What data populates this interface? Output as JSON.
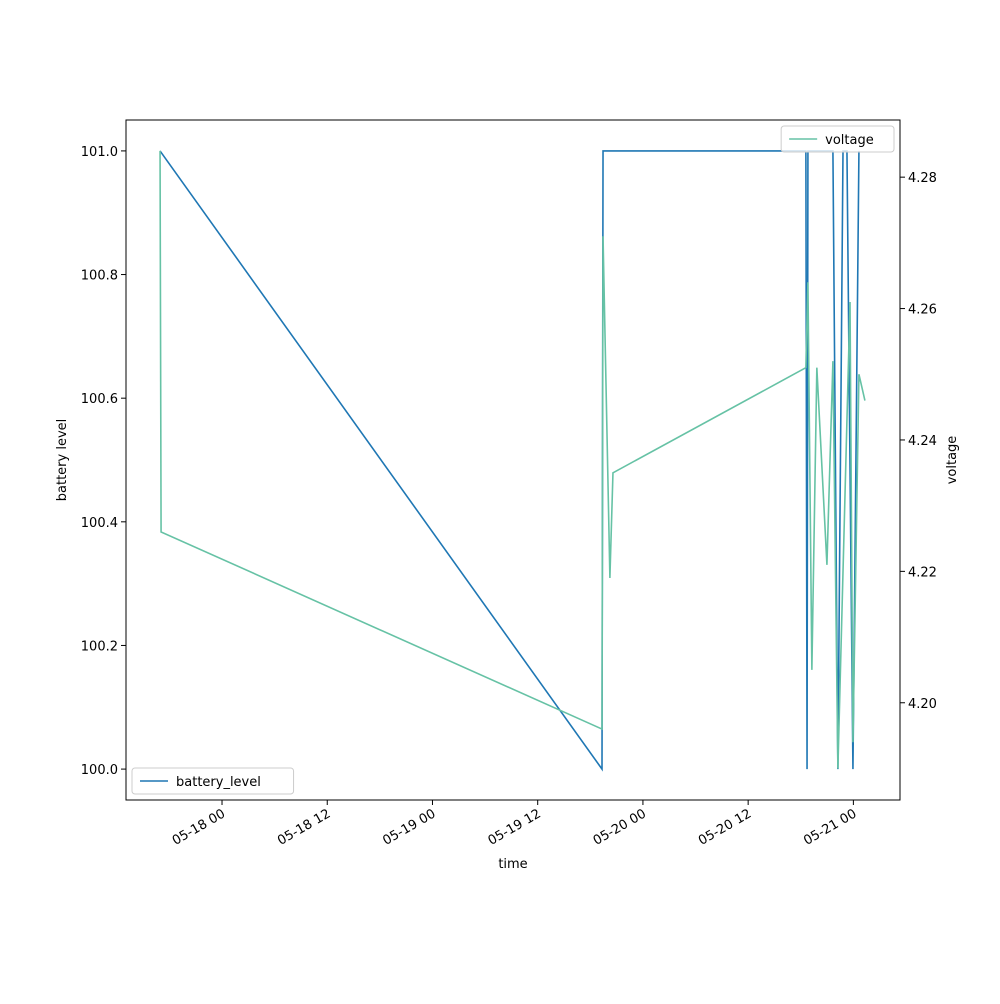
{
  "chart_data": {
    "type": "line",
    "xlabel": "time",
    "ylabel": "battery level",
    "y2label": "voltage",
    "xlim": [
      "05-17 13:03",
      "05-21 05:19"
    ],
    "xticks": [
      "05-18 00",
      "05-18 12",
      "05-19 00",
      "05-19 12",
      "05-20 00",
      "05-20 12",
      "05-21 00"
    ],
    "ylim": [
      99.95,
      101.05
    ],
    "yticks": [
      {
        "value": 100.0,
        "label": "100.0"
      },
      100.2,
      100.4,
      100.6,
      100.8,
      {
        "value": 101.0,
        "label": "101.0"
      }
    ],
    "y2lim": [
      4.1852,
      4.2887
    ],
    "y2ticks": [
      {
        "value": 4.2,
        "label": "4.20"
      },
      4.22,
      4.24,
      4.26,
      4.28
    ],
    "series": [
      {
        "name": "battery_level",
        "color": "#1f77b4",
        "legend_loc": "lower left",
        "x": [
          "05-17 16:56",
          "05-19 19:20",
          "05-19 19:27",
          "05-20 18:35",
          "05-20 18:43",
          "05-20 18:49",
          "05-20 21:40",
          "05-20 22:14",
          "05-20 22:49",
          "05-20 23:16",
          "05-20 23:57",
          "05-21 00:38"
        ],
        "values": [
          101,
          100,
          101,
          101,
          100,
          101,
          101,
          100,
          101,
          101,
          100,
          101
        ]
      },
      {
        "name": "voltage",
        "color": "#66c2a5",
        "axis": "y2",
        "legend_loc": "upper right",
        "x": [
          "05-17 16:56",
          "05-17 17:03",
          "05-19 19:20",
          "05-19 19:27",
          "05-19 20:14",
          "05-19 20:35",
          "05-20 18:35",
          "05-20 18:49",
          "05-20 19:16",
          "05-20 19:50",
          "05-20 20:59",
          "05-20 21:40",
          "05-20 22:14",
          "05-20 23:37",
          "05-20 23:57",
          "05-21 00:38",
          "05-21 01:19"
        ],
        "values": [
          4.284,
          4.226,
          4.196,
          4.271,
          4.219,
          4.235,
          4.251,
          4.264,
          4.205,
          4.251,
          4.221,
          4.252,
          4.19,
          4.261,
          4.194,
          4.25,
          4.246
        ]
      }
    ]
  }
}
